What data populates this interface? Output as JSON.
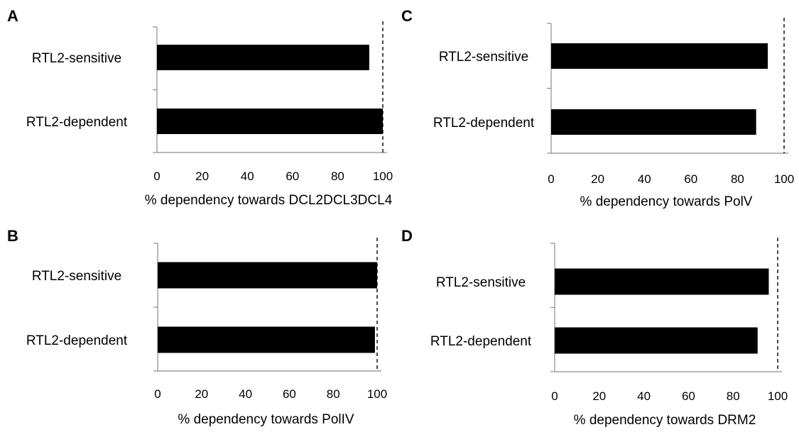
{
  "chart_data": [
    {
      "panel": "A",
      "type": "bar",
      "orientation": "horizontal",
      "categories": [
        "RTL2-sensitive",
        "RTL2-dependent"
      ],
      "values": [
        94,
        100
      ],
      "xlabel": "% dependency towards DCL2DCL3DCL4",
      "xlim": [
        0,
        100
      ],
      "xticks": [
        0,
        20,
        40,
        60,
        80,
        100
      ],
      "reference_line": 100,
      "bar_color": "#000000"
    },
    {
      "panel": "B",
      "type": "bar",
      "orientation": "horizontal",
      "categories": [
        "RTL2-sensitive",
        "RTL2-dependent"
      ],
      "values": [
        100,
        99
      ],
      "xlabel": "% dependency towards PolIV",
      "xlim": [
        0,
        100
      ],
      "xticks": [
        0,
        20,
        40,
        60,
        80,
        100
      ],
      "reference_line": 100,
      "bar_color": "#000000"
    },
    {
      "panel": "C",
      "type": "bar",
      "orientation": "horizontal",
      "categories": [
        "RTL2-sensitive",
        "RTL2-dependent"
      ],
      "values": [
        93,
        88
      ],
      "xlabel": "% dependency towards PolV",
      "xlim": [
        0,
        100
      ],
      "xticks": [
        0,
        20,
        40,
        60,
        80,
        100
      ],
      "reference_line": 100,
      "bar_color": "#000000"
    },
    {
      "panel": "D",
      "type": "bar",
      "orientation": "horizontal",
      "categories": [
        "RTL2-sensitive",
        "RTL2-dependent"
      ],
      "values": [
        96,
        91
      ],
      "xlabel": "% dependency towards DRM2",
      "xlim": [
        0,
        100
      ],
      "xticks": [
        0,
        20,
        40,
        60,
        80,
        100
      ],
      "reference_line": 100,
      "bar_color": "#000000"
    }
  ]
}
